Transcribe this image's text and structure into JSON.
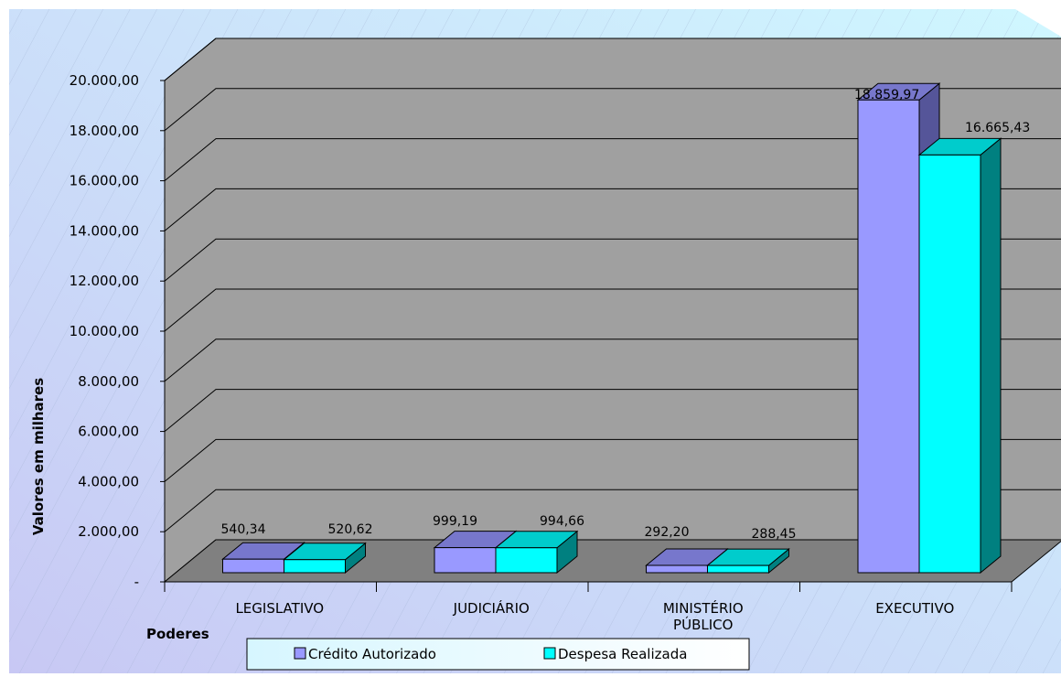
{
  "chart_data": {
    "type": "bar",
    "title": "",
    "xlabel": "Poderes",
    "ylabel": "Valores  em milhares",
    "categories": [
      "LEGISLATIVO",
      "JUDICIÁRIO",
      "MINISTÉRIO PÚBLICO",
      "EXECUTIVO"
    ],
    "category_labels": [
      [
        "LEGISLATIVO"
      ],
      [
        "JUDICIÁRIO"
      ],
      [
        "MINISTÉRIO",
        "PÚBLICO"
      ],
      [
        "EXECUTIVO"
      ]
    ],
    "series": [
      {
        "name": "Crédito Autorizado",
        "values": [
          540.34,
          999.19,
          292.2,
          18859.97
        ],
        "labels": [
          "540,34",
          "999,19",
          "292,20",
          "18.859,97"
        ],
        "color": "#9999FF",
        "top_color": "#7777CC",
        "side_color": "#555599"
      },
      {
        "name": "Despesa Realizada",
        "values": [
          520.62,
          994.66,
          288.45,
          16665.43
        ],
        "labels": [
          "520,62",
          "994,66",
          "288,45",
          "16.665,43"
        ],
        "color": "#00FFFF",
        "top_color": "#00CCCC",
        "side_color": "#008080"
      }
    ],
    "ylim": [
      0,
      20000
    ],
    "yticks": [
      0,
      2000,
      4000,
      6000,
      8000,
      10000,
      12000,
      14000,
      16000,
      18000,
      20000
    ],
    "ytick_labels": [
      "-",
      "2.000,00",
      "4.000,00",
      "6.000,00",
      "8.000,00",
      "10.000,00",
      "12.000,00",
      "14.000,00",
      "16.000,00",
      "18.000,00",
      "20.000,00"
    ],
    "grid": true,
    "legend_position": "bottom",
    "wall_color": "#A0A0A0",
    "floor_color": "#808080"
  }
}
